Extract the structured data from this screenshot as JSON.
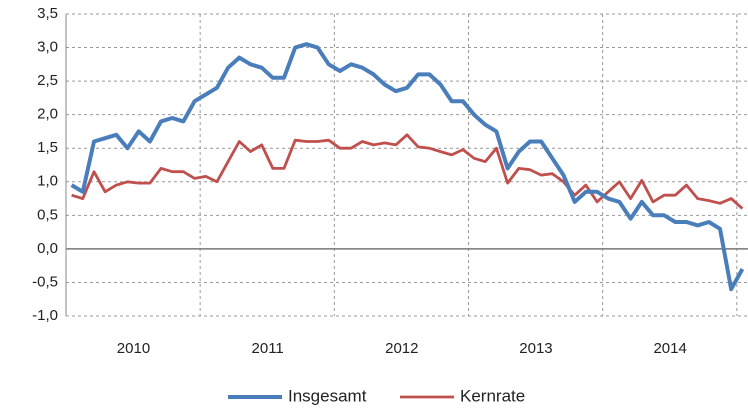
{
  "chart_data": {
    "type": "line",
    "categories": [
      null,
      null,
      null,
      null,
      null,
      "2010",
      null,
      null,
      null,
      null,
      null,
      null,
      null,
      null,
      null,
      null,
      null,
      "2011",
      null,
      null,
      null,
      null,
      null,
      null,
      null,
      null,
      null,
      null,
      null,
      "2012",
      null,
      null,
      null,
      null,
      null,
      null,
      null,
      null,
      null,
      null,
      null,
      "2013",
      null,
      null,
      null,
      null,
      null,
      null,
      null,
      null,
      null,
      null,
      null,
      "2014",
      null,
      null,
      null,
      null,
      null,
      null,
      null
    ],
    "series": [
      {
        "name": "Insgesamt",
        "color": "#4a7ebb",
        "values": [
          0.95,
          0.85,
          1.6,
          1.65,
          1.7,
          1.5,
          1.75,
          1.6,
          1.9,
          1.95,
          1.9,
          2.2,
          2.3,
          2.4,
          2.7,
          2.85,
          2.75,
          2.7,
          2.55,
          2.55,
          3.0,
          3.05,
          3.0,
          2.75,
          2.65,
          2.75,
          2.7,
          2.6,
          2.45,
          2.35,
          2.4,
          2.6,
          2.6,
          2.45,
          2.2,
          2.2,
          2.0,
          1.85,
          1.75,
          1.2,
          1.45,
          1.6,
          1.6,
          1.35,
          1.1,
          0.7,
          0.85,
          0.85,
          0.75,
          0.7,
          0.45,
          0.7,
          0.5,
          0.5,
          0.4,
          0.4,
          0.35,
          0.4,
          0.3,
          -0.6,
          -0.3
        ]
      },
      {
        "name": "Kernrate",
        "color": "#c0504d",
        "values": [
          0.8,
          0.75,
          1.15,
          0.85,
          0.95,
          1.0,
          0.98,
          0.98,
          1.2,
          1.15,
          1.15,
          1.05,
          1.08,
          1.0,
          1.3,
          1.6,
          1.45,
          1.55,
          1.2,
          1.2,
          1.62,
          1.6,
          1.6,
          1.62,
          1.5,
          1.5,
          1.6,
          1.55,
          1.58,
          1.55,
          1.7,
          1.52,
          1.5,
          1.45,
          1.4,
          1.48,
          1.35,
          1.3,
          1.5,
          0.98,
          1.2,
          1.18,
          1.1,
          1.12,
          1.0,
          0.8,
          0.95,
          0.7,
          0.85,
          1.0,
          0.75,
          1.02,
          0.7,
          0.8,
          0.8,
          0.95,
          0.75,
          0.72,
          0.68,
          0.75,
          0.6
        ]
      }
    ],
    "ylim": [
      -1.0,
      3.5
    ],
    "yticks": [
      {
        "value": -1.0,
        "label": "-1,0"
      },
      {
        "value": -0.5,
        "label": "-0,5"
      },
      {
        "value": 0.0,
        "label": "0,0"
      },
      {
        "value": 0.5,
        "label": "0,5"
      },
      {
        "value": 1.0,
        "label": "1,0"
      },
      {
        "value": 1.5,
        "label": "1,5"
      },
      {
        "value": 2.0,
        "label": "2,0"
      },
      {
        "value": 2.5,
        "label": "2,5"
      },
      {
        "value": 3.0,
        "label": "3,0"
      },
      {
        "value": 3.5,
        "label": "3,5"
      }
    ],
    "grid": true,
    "legend": "bottom"
  }
}
